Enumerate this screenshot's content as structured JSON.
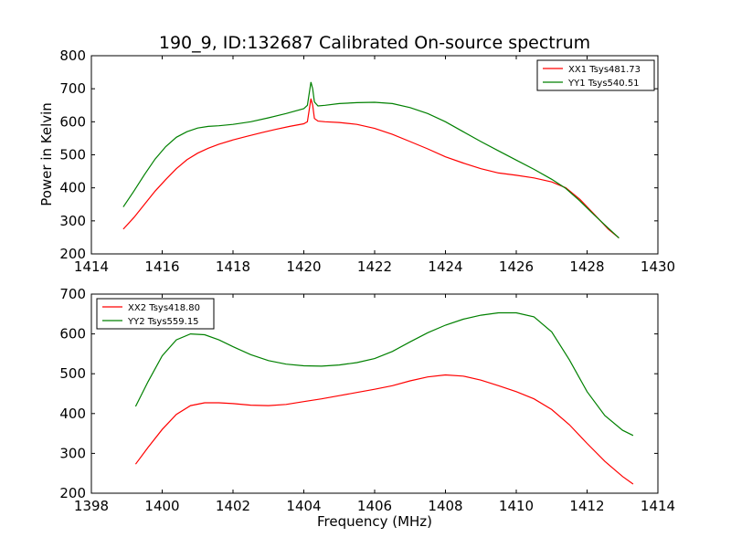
{
  "chart_data": [
    {
      "type": "line",
      "title": "190_9, ID:132687 Calibrated On-source spectrum",
      "xlabel": "",
      "ylabel": "Power in Kelvin",
      "xlim": [
        1414,
        1430
      ],
      "ylim": [
        200,
        800
      ],
      "xticks": [
        1414,
        1416,
        1418,
        1420,
        1422,
        1424,
        1426,
        1428,
        1430
      ],
      "yticks": [
        200,
        300,
        400,
        500,
        600,
        700,
        800
      ],
      "grid": false,
      "legend": "top-right",
      "series": [
        {
          "name": "XX1 Tsys481.73",
          "color": "#ff0000",
          "x": [
            1414.9,
            1415.2,
            1415.5,
            1415.8,
            1416.1,
            1416.4,
            1416.7,
            1417.0,
            1417.3,
            1417.6,
            1418.0,
            1418.4,
            1418.8,
            1419.2,
            1419.6,
            1420.0,
            1420.1,
            1420.2,
            1420.25,
            1420.3,
            1420.4,
            1420.6,
            1421.0,
            1421.5,
            1422.0,
            1422.5,
            1423.0,
            1423.5,
            1424.0,
            1424.5,
            1425.0,
            1425.5,
            1426.0,
            1426.5,
            1427.0,
            1427.4,
            1427.8,
            1428.2,
            1428.6,
            1428.9
          ],
          "y": [
            275,
            310,
            350,
            390,
            425,
            458,
            485,
            505,
            520,
            532,
            545,
            556,
            567,
            577,
            586,
            594,
            600,
            670,
            650,
            610,
            602,
            600,
            598,
            592,
            580,
            562,
            540,
            518,
            494,
            475,
            458,
            445,
            438,
            430,
            418,
            400,
            365,
            320,
            275,
            248
          ]
        },
        {
          "name": "YY1 Tsys540.51",
          "color": "#008000",
          "x": [
            1414.9,
            1415.2,
            1415.5,
            1415.8,
            1416.1,
            1416.4,
            1416.7,
            1417.0,
            1417.3,
            1417.6,
            1418.0,
            1418.5,
            1419.0,
            1419.5,
            1420.0,
            1420.1,
            1420.2,
            1420.25,
            1420.3,
            1420.4,
            1420.6,
            1421.0,
            1421.5,
            1422.0,
            1422.5,
            1423.0,
            1423.5,
            1424.0,
            1424.5,
            1425.0,
            1425.5,
            1426.0,
            1426.5,
            1427.0,
            1427.4,
            1427.8,
            1428.2,
            1428.6,
            1428.9
          ],
          "y": [
            342,
            390,
            440,
            487,
            525,
            553,
            570,
            581,
            586,
            588,
            592,
            600,
            612,
            625,
            640,
            650,
            720,
            700,
            660,
            648,
            650,
            655,
            658,
            659,
            655,
            643,
            625,
            600,
            570,
            540,
            512,
            484,
            456,
            426,
            398,
            360,
            318,
            278,
            248
          ]
        }
      ]
    },
    {
      "type": "line",
      "title": "",
      "xlabel": "Frequency (MHz)",
      "ylabel": "",
      "xlim": [
        1398,
        1414
      ],
      "ylim": [
        200,
        700
      ],
      "xticks": [
        1398,
        1400,
        1402,
        1404,
        1406,
        1408,
        1410,
        1412,
        1414
      ],
      "yticks": [
        200,
        300,
        400,
        500,
        600,
        700
      ],
      "grid": false,
      "legend": "top-left",
      "series": [
        {
          "name": "XX2 Tsys418.80",
          "color": "#ff0000",
          "x": [
            1399.25,
            1399.6,
            1400.0,
            1400.4,
            1400.8,
            1401.2,
            1401.6,
            1402.0,
            1402.5,
            1403.0,
            1403.5,
            1404.0,
            1404.5,
            1405.0,
            1405.5,
            1406.0,
            1406.5,
            1407.0,
            1407.5,
            1408.0,
            1408.5,
            1409.0,
            1409.5,
            1410.0,
            1410.5,
            1411.0,
            1411.5,
            1412.0,
            1412.5,
            1413.0,
            1413.3
          ],
          "y": [
            273,
            315,
            360,
            398,
            420,
            427,
            427,
            425,
            421,
            420,
            423,
            430,
            437,
            445,
            453,
            461,
            470,
            482,
            492,
            497,
            494,
            484,
            470,
            455,
            437,
            410,
            372,
            325,
            280,
            242,
            223
          ]
        },
        {
          "name": "YY2 Tsys559.15",
          "color": "#008000",
          "x": [
            1399.25,
            1399.6,
            1400.0,
            1400.4,
            1400.8,
            1401.2,
            1401.6,
            1402.0,
            1402.5,
            1403.0,
            1403.5,
            1404.0,
            1404.5,
            1405.0,
            1405.5,
            1406.0,
            1406.5,
            1407.0,
            1407.5,
            1408.0,
            1408.5,
            1409.0,
            1409.5,
            1410.0,
            1410.5,
            1411.0,
            1411.5,
            1412.0,
            1412.5,
            1413.0,
            1413.3
          ],
          "y": [
            418,
            480,
            545,
            585,
            600,
            598,
            585,
            568,
            548,
            533,
            524,
            520,
            519,
            522,
            528,
            538,
            556,
            580,
            603,
            622,
            637,
            647,
            653,
            653,
            643,
            605,
            535,
            455,
            395,
            358,
            345
          ]
        }
      ]
    }
  ]
}
